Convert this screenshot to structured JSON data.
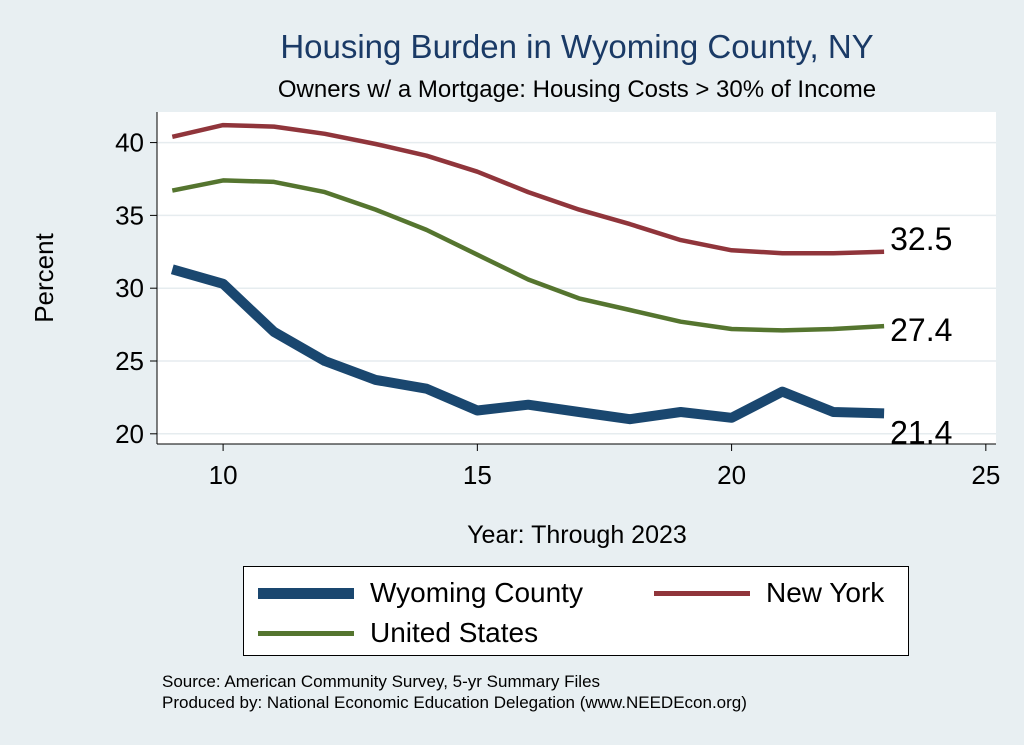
{
  "chart_data": {
    "type": "line",
    "title": "Housing Burden in Wyoming County, NY",
    "subtitle": "Owners w/ a Mortgage: Housing Costs > 30% of Income",
    "xlabel": "Year: Through 2023",
    "ylabel": "Percent",
    "xlim": [
      8.7,
      25.2
    ],
    "ylim": [
      19.3,
      42.1
    ],
    "xticks": [
      10,
      15,
      20,
      25
    ],
    "yticks": [
      20,
      25,
      30,
      35,
      40
    ],
    "grid": true,
    "series": [
      {
        "name": "Wyoming County",
        "color": "#1a476f",
        "x": [
          9,
          10,
          11,
          12,
          13,
          14,
          15,
          16,
          17,
          18,
          19,
          20,
          21,
          22,
          23
        ],
        "values": [
          31.3,
          30.3,
          27.0,
          25.0,
          23.7,
          23.1,
          21.6,
          22.0,
          21.5,
          21.0,
          21.5,
          21.1,
          22.9,
          21.5,
          21.4
        ],
        "end_label": "21.4"
      },
      {
        "name": "New York",
        "color": "#90353b",
        "x": [
          9,
          10,
          11,
          12,
          13,
          14,
          15,
          16,
          17,
          18,
          19,
          20,
          21,
          22,
          23
        ],
        "values": [
          40.4,
          41.2,
          41.1,
          40.6,
          39.9,
          39.1,
          38.0,
          36.6,
          35.4,
          34.4,
          33.3,
          32.6,
          32.4,
          32.4,
          32.5
        ],
        "end_label": "32.5"
      },
      {
        "name": "United States",
        "color": "#55752f",
        "x": [
          9,
          10,
          11,
          12,
          13,
          14,
          15,
          16,
          17,
          18,
          19,
          20,
          21,
          22,
          23
        ],
        "values": [
          36.7,
          37.4,
          37.3,
          36.6,
          35.4,
          34.0,
          32.3,
          30.6,
          29.3,
          28.5,
          27.7,
          27.2,
          27.1,
          27.2,
          27.4
        ],
        "end_label": "27.4"
      }
    ],
    "legend": {
      "placement": "bottom",
      "items": [
        "Wyoming County",
        "New York",
        "United States"
      ]
    }
  },
  "footnotes": {
    "source": "Source: American Community Survey, 5-yr Summary Files",
    "produced": "Produced by: National Economic Education Delegation (www.NEEDEcon.org)"
  }
}
